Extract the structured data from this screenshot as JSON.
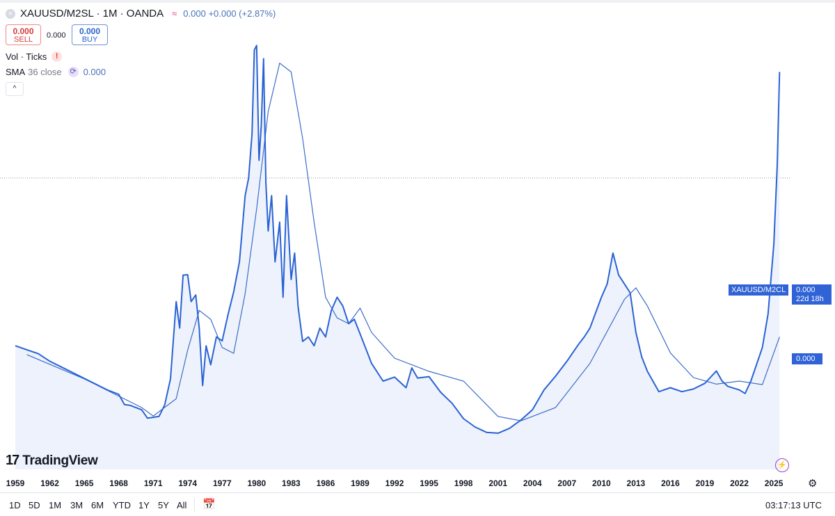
{
  "header": {
    "symbol_line": "XAUUSD/M2SL · 1M · OANDA",
    "approx_icon": "≈",
    "change": "0.000 +0.000 (+2.87%)",
    "close_icon": "×"
  },
  "trade": {
    "sell_value": "0.000",
    "sell_label": "SELL",
    "spread": "0.000",
    "buy_value": "0.000",
    "buy_label": "BUY"
  },
  "indicators": {
    "vol_label": "Vol · Ticks",
    "vol_warning_icon": "!",
    "sma_label": "SMA",
    "sma_params": "36 close",
    "sma_value": "0.000",
    "collapse_icon": "^"
  },
  "price_tags": {
    "symbol": "XAUUSD/M2CL",
    "value": "0.000",
    "countdown": "22d 18h",
    "sma_value": "0.000"
  },
  "branding": {
    "logo_mark": "17",
    "logo_text": "TradingView"
  },
  "time_axis": [
    "1959",
    "1962",
    "1965",
    "1968",
    "1971",
    "1974",
    "1977",
    "1980",
    "1983",
    "1986",
    "1989",
    "1992",
    "1995",
    "1998",
    "2001",
    "2004",
    "2007",
    "2010",
    "2013",
    "2016",
    "2019",
    "2022",
    "2025"
  ],
  "range_buttons": [
    "1D",
    "5D",
    "1M",
    "3M",
    "6M",
    "YTD",
    "1Y",
    "5Y",
    "All"
  ],
  "clock": "03:17:13 UTC",
  "colors": {
    "line": "#2962d4",
    "area": "#e8eefb",
    "sma": "#3b6cc9",
    "tag": "#2f63d6"
  },
  "chart_data": {
    "type": "area",
    "title": "XAUUSD/M2SL · 1M · OANDA",
    "xlabel": "",
    "ylabel": "",
    "price_axis": "relative units (no tick labels shown)",
    "xlim": [
      1959,
      2025.6
    ],
    "ylim": [
      0,
      1
    ],
    "grid": false,
    "series": [
      {
        "name": "XAUUSD/M2SL",
        "x": [
          1959,
          1960,
          1961,
          1962,
          1963,
          1964,
          1965,
          1966,
          1967,
          1968,
          1968.5,
          1969,
          1970,
          1970.5,
          1971,
          1971.5,
          1972,
          1972.5,
          1973,
          1973.3,
          1973.6,
          1974,
          1974.3,
          1974.7,
          1975,
          1975.3,
          1975.6,
          1976,
          1976.5,
          1977,
          1977.5,
          1978,
          1978.5,
          1979,
          1979.3,
          1979.6,
          1979.8,
          1980,
          1980.2,
          1980.4,
          1980.6,
          1980.8,
          1981,
          1981.3,
          1981.6,
          1982,
          1982.3,
          1982.6,
          1983,
          1983.3,
          1983.6,
          1984,
          1984.5,
          1985,
          1985.5,
          1986,
          1986.5,
          1987,
          1987.5,
          1988,
          1988.5,
          1989,
          1990,
          1991,
          1992,
          1993,
          1993.5,
          1994,
          1995,
          1996,
          1997,
          1998,
          1999,
          2000,
          2001,
          2002,
          2003,
          2004,
          2005,
          2006,
          2007,
          2008,
          2008.5,
          2009,
          2010,
          2010.5,
          2011,
          2011.5,
          2012,
          2012.5,
          2013,
          2013.5,
          2014,
          2015,
          2016,
          2017,
          2018,
          2019,
          2020,
          2020.5,
          2021,
          2022,
          2022.5,
          2023,
          2024,
          2024.5,
          2025,
          2025.3,
          2025.5
        ],
        "y": [
          0.28,
          0.271,
          0.262,
          0.245,
          0.232,
          0.219,
          0.206,
          0.193,
          0.18,
          0.17,
          0.147,
          0.145,
          0.135,
          0.116,
          0.118,
          0.12,
          0.146,
          0.205,
          0.38,
          0.32,
          0.44,
          0.441,
          0.38,
          0.395,
          0.32,
          0.19,
          0.28,
          0.237,
          0.3,
          0.291,
          0.35,
          0.402,
          0.47,
          0.62,
          0.66,
          0.76,
          0.95,
          0.96,
          0.7,
          0.78,
          0.93,
          0.65,
          0.54,
          0.62,
          0.47,
          0.56,
          0.39,
          0.62,
          0.43,
          0.49,
          0.37,
          0.29,
          0.3,
          0.28,
          0.32,
          0.3,
          0.36,
          0.39,
          0.37,
          0.33,
          0.34,
          0.307,
          0.24,
          0.2,
          0.209,
          0.185,
          0.23,
          0.207,
          0.21,
          0.175,
          0.15,
          0.115,
          0.096,
          0.084,
          0.082,
          0.093,
          0.112,
          0.135,
          0.18,
          0.211,
          0.245,
          0.283,
          0.3,
          0.32,
          0.39,
          0.42,
          0.49,
          0.44,
          0.42,
          0.4,
          0.31,
          0.255,
          0.222,
          0.176,
          0.185,
          0.176,
          0.182,
          0.195,
          0.223,
          0.2,
          0.188,
          0.18,
          0.172,
          0.2,
          0.276,
          0.352,
          0.51,
          0.69,
          0.9
        ]
      },
      {
        "name": "SMA 36 close",
        "x": [
          1960,
          1965,
          1970,
          1971,
          1973,
          1974,
          1975,
          1976,
          1977,
          1978,
          1979,
          1980,
          1981,
          1982,
          1983,
          1984,
          1985,
          1986,
          1987,
          1988,
          1989,
          1990,
          1992,
          1995,
          1998,
          2001,
          2003,
          2006,
          2009,
          2012,
          2013,
          2014,
          2016,
          2018,
          2020,
          2022,
          2024,
          2025.5
        ],
        "y": [
          0.26,
          0.205,
          0.14,
          0.121,
          0.16,
          0.27,
          0.36,
          0.34,
          0.276,
          0.263,
          0.398,
          0.59,
          0.81,
          0.92,
          0.9,
          0.75,
          0.56,
          0.39,
          0.343,
          0.33,
          0.365,
          0.31,
          0.252,
          0.222,
          0.2,
          0.12,
          0.11,
          0.14,
          0.24,
          0.385,
          0.411,
          0.37,
          0.264,
          0.208,
          0.193,
          0.2,
          0.192,
          0.3
        ]
      }
    ]
  }
}
